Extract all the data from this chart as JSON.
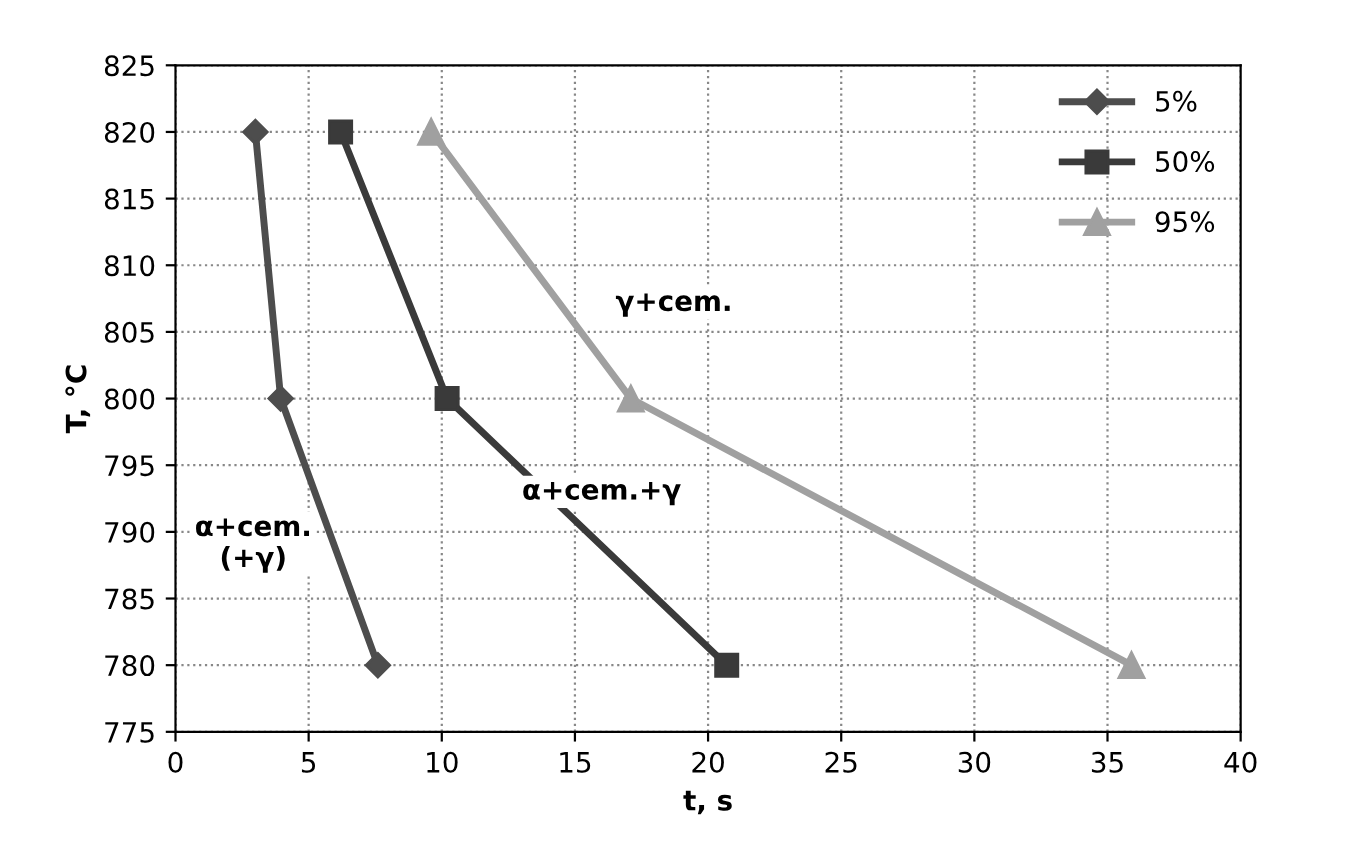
{
  "chart_data": {
    "type": "line",
    "xlabel": "t, s",
    "ylabel": "T, °C",
    "xlim": [
      0,
      40
    ],
    "xticks": [
      0,
      5,
      10,
      15,
      20,
      25,
      30,
      35,
      40
    ],
    "ylim": [
      775,
      825
    ],
    "yticks": [
      775,
      780,
      785,
      790,
      795,
      800,
      805,
      810,
      815,
      820,
      825
    ],
    "grid": true,
    "legend": "top right",
    "line_style": "solid",
    "series": [
      {
        "name": "5%",
        "color": "#4d4d4d",
        "marker": "diamond",
        "x": [
          3.0,
          3.95,
          7.6
        ],
        "values": [
          820,
          800,
          780
        ]
      },
      {
        "name": "50%",
        "color": "#3a3a3a",
        "marker": "square",
        "x": [
          6.2,
          10.2,
          20.7
        ],
        "values": [
          820,
          800,
          780
        ]
      },
      {
        "name": "95%",
        "color": "#a0a0a0",
        "marker": "triangle",
        "x": [
          9.6,
          17.1,
          35.9
        ],
        "values": [
          820,
          800,
          780
        ]
      }
    ],
    "annotations": [
      "γ+cem.",
      "α+cem.+γ",
      "α+cem.\n(+γ)"
    ]
  }
}
